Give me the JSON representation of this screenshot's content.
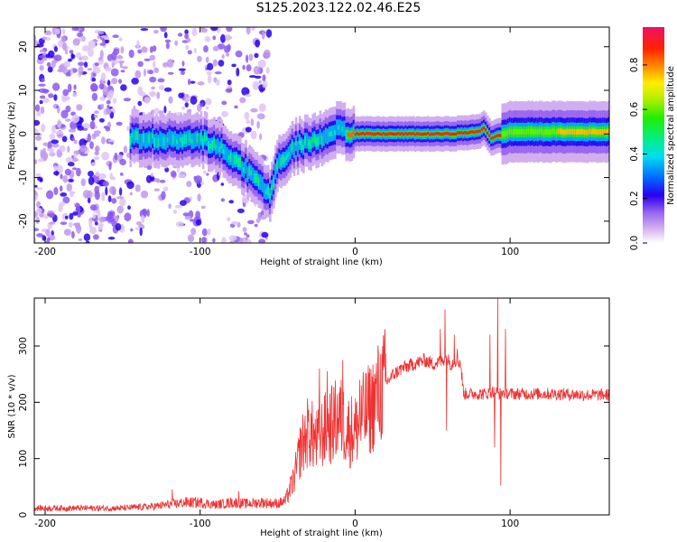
{
  "title": "S125.2023.122.02.46.E25",
  "chart_data": [
    {
      "type": "heatmap",
      "xlabel": "Height of straight line (km)",
      "ylabel": "Frequency (Hz)",
      "xlim": [
        -207,
        164
      ],
      "ylim": [
        -25,
        24.5
      ],
      "xticks": [
        -200,
        -100,
        0,
        100
      ],
      "yticks": [
        -20,
        -10,
        0,
        10,
        20
      ],
      "colorbar": {
        "label": "Normalized spectral amplitude",
        "ticks": [
          0.0,
          0.2,
          0.4,
          0.6,
          0.8
        ],
        "tick_labels": [
          "0.0",
          "0.2",
          "0.4",
          "0.6",
          "0.8"
        ],
        "range": [
          0,
          0.97
        ]
      },
      "ridge": {
        "x": [
          -140,
          -120,
          -100,
          -88,
          -78,
          -68,
          -60,
          -55,
          -50,
          -45,
          -40,
          -35,
          -30,
          -25,
          -20,
          -15,
          -10,
          -5,
          0,
          40,
          60,
          80,
          83,
          88,
          100,
          120,
          164
        ],
        "y": [
          -1,
          -1.5,
          -1,
          -3,
          -5.5,
          -9,
          -12,
          -13.5,
          -7,
          -6,
          -3,
          -2.5,
          -2,
          -1.5,
          -0.5,
          0.5,
          1,
          0.5,
          0,
          0,
          0,
          0.5,
          1.5,
          -1,
          0.5,
          0.5,
          0.5
        ]
      }
    },
    {
      "type": "line",
      "xlabel": "Height of straight line (km)",
      "ylabel": "SNR (10 * v/v)",
      "xlim": [
        -207,
        164
      ],
      "ylim": [
        0,
        385
      ],
      "xticks": [
        -200,
        -100,
        0,
        100
      ],
      "yticks": [
        0,
        100,
        200,
        300
      ],
      "color": "#ee3333",
      "envelope": {
        "x": [
          -207,
          -150,
          -130,
          -110,
          -100,
          -90,
          -80,
          -70,
          -60,
          -50,
          -45,
          -40,
          -38,
          -35,
          -30,
          -25,
          -20,
          -15,
          -10,
          -5,
          0,
          5,
          10,
          15,
          20,
          25,
          30,
          35,
          40,
          45,
          50,
          55,
          58,
          60,
          62,
          65,
          68,
          70,
          75,
          80,
          85,
          90,
          93,
          95,
          100,
          110,
          130,
          150,
          164
        ],
        "y": [
          12,
          12,
          15,
          22,
          22,
          18,
          22,
          20,
          22,
          20,
          25,
          60,
          80,
          120,
          150,
          130,
          150,
          160,
          175,
          150,
          150,
          175,
          190,
          215,
          235,
          250,
          260,
          265,
          270,
          275,
          268,
          272,
          278,
          275,
          268,
          275,
          270,
          215,
          215,
          215,
          215,
          220,
          215,
          218,
          215,
          215,
          215,
          213,
          213
        ]
      },
      "spikes": [
        {
          "x": -23,
          "y": 260
        },
        {
          "x": -18,
          "y": 255
        },
        {
          "x": -13,
          "y": 205
        },
        {
          "x": -8,
          "y": 275
        },
        {
          "x": 3,
          "y": 240
        },
        {
          "x": 55,
          "y": 330
        },
        {
          "x": 58,
          "y": 365
        },
        {
          "x": 59,
          "y": 150
        },
        {
          "x": 64,
          "y": 320
        },
        {
          "x": 66,
          "y": 295
        },
        {
          "x": 87,
          "y": 320
        },
        {
          "x": 90,
          "y": 120
        },
        {
          "x": 92,
          "y": 385
        },
        {
          "x": 94,
          "y": 52
        },
        {
          "x": 97,
          "y": 330
        },
        {
          "x": -118,
          "y": 45
        },
        {
          "x": -75,
          "y": 42
        }
      ]
    }
  ]
}
